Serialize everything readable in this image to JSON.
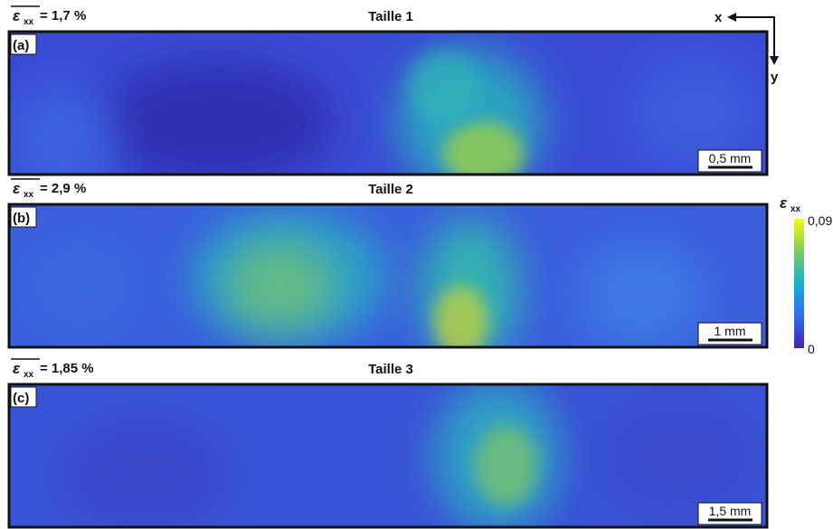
{
  "axes": {
    "x": "x",
    "y": "y"
  },
  "colorbar": {
    "symbol": "ε",
    "subscript": "xx",
    "max_label": "0,09",
    "min_label": "0"
  },
  "panels": [
    {
      "symbol": "ε",
      "subscript": "xx",
      "strain": "= 1,7 %",
      "title": "Taille 1",
      "label": "(a)",
      "scale": "0,5 mm"
    },
    {
      "symbol": "ε",
      "subscript": "xx",
      "strain": "= 2,9 %",
      "title": "Taille 2",
      "label": "(b)",
      "scale": "1 mm"
    },
    {
      "symbol": "ε",
      "subscript": "xx",
      "strain": "= 1,85 %",
      "title": "Taille 3",
      "label": "(c)",
      "scale": "1,5 mm"
    }
  ]
}
